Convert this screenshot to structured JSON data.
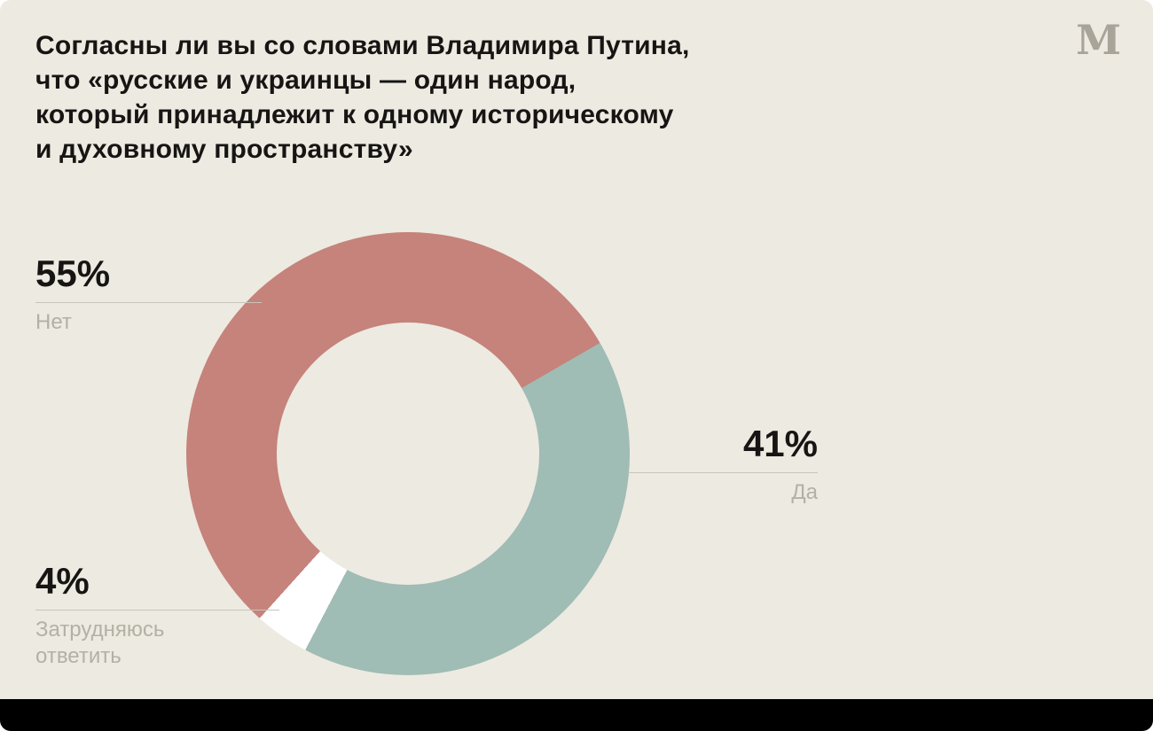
{
  "colors": {
    "background": "#edeae1",
    "percent_text": "#171514",
    "category_text": "#b3b0a6",
    "leader_line": "#c7c4ba",
    "logo": "#a8a49a",
    "bottom_bar": "#000000"
  },
  "logo": {
    "glyph": "M"
  },
  "title": {
    "lines": [
      "Согласны ли вы со словами Владимира Путина,",
      "что «русские и украинцы — один народ,",
      "который принадлежит к одному историческому",
      "и духовному пространству»"
    ]
  },
  "chart_data": {
    "type": "pie",
    "subtype": "donut",
    "title": "Согласны ли вы со словами Владимира Путина, что «русские и украинцы — один народ, который принадлежит к одному историческому и духовному пространству»",
    "unit": "%",
    "start_angle_deg": 222,
    "legend_position": "callouts",
    "segments": [
      {
        "label": "Нет",
        "value": 55,
        "color": "#c5837b"
      },
      {
        "label": "Да",
        "value": 41,
        "color": "#9fbcb5"
      },
      {
        "label": "Затрудняюсь ответить",
        "value": 4,
        "color": "#ffffff"
      }
    ]
  },
  "callouts": {
    "no": {
      "percent": "55%",
      "label": "Нет"
    },
    "yes": {
      "percent": "41%",
      "label": "Да"
    },
    "undecided": {
      "percent": "4%",
      "label": "Затрудняюсь ответить"
    }
  }
}
